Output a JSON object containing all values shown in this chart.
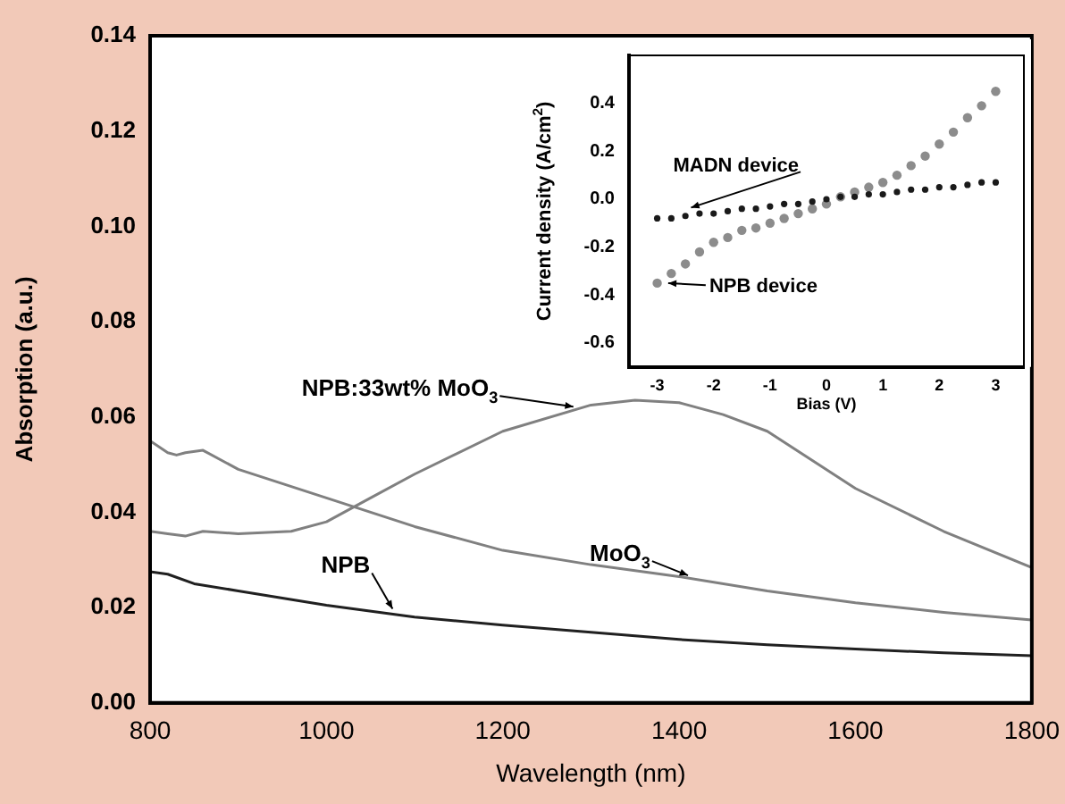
{
  "chart_data": [
    {
      "type": "line",
      "xlabel": "Wavelength (nm)",
      "ylabel": "Absorption (a.u.)",
      "xlim": [
        800,
        1800
      ],
      "ylim": [
        0,
        0.14
      ],
      "xticks": [
        800,
        1000,
        1200,
        1400,
        1600,
        1800
      ],
      "yticks": [
        {
          "value": 0,
          "label": "0.00"
        },
        {
          "value": 0.02,
          "label": "0.02"
        },
        {
          "value": 0.04,
          "label": "0.04"
        },
        {
          "value": 0.06,
          "label": "0.06"
        },
        {
          "value": 0.08,
          "label": "0.08"
        },
        {
          "value": 0.1,
          "label": "0.10"
        },
        {
          "value": 0.12,
          "label": "0.12"
        },
        {
          "value": 0.14,
          "label": "0.14"
        }
      ],
      "marker": "none",
      "line_style": "solid",
      "series": [
        {
          "color": "#808080",
          "x": [
            800,
            820,
            830,
            840,
            860,
            900,
            1000,
            1100,
            1200,
            1300,
            1400,
            1500,
            1600,
            1700,
            1800
          ],
          "values": [
            0.055,
            0.0525,
            0.052,
            0.0525,
            0.053,
            0.049,
            0.043,
            0.037,
            0.032,
            0.029,
            0.0265,
            0.0235,
            0.021,
            0.019,
            0.0174
          ]
        },
        {
          "color": "#808080",
          "x": [
            800,
            820,
            840,
            860,
            900,
            960,
            1000,
            1050,
            1100,
            1200,
            1300,
            1350,
            1400,
            1450,
            1500,
            1550,
            1600,
            1700,
            1800
          ],
          "values": [
            0.036,
            0.0355,
            0.035,
            0.036,
            0.0355,
            0.036,
            0.038,
            0.043,
            0.048,
            0.057,
            0.0625,
            0.0635,
            0.063,
            0.0605,
            0.057,
            0.051,
            0.045,
            0.036,
            0.0284
          ]
        },
        {
          "color": "#202020",
          "x": [
            800,
            820,
            850,
            900,
            1000,
            1100,
            1200,
            1300,
            1400,
            1500,
            1600,
            1700,
            1800
          ],
          "values": [
            0.0275,
            0.027,
            0.025,
            0.0235,
            0.0205,
            0.018,
            0.0163,
            0.0148,
            0.0133,
            0.0122,
            0.0113,
            0.0105,
            0.0099
          ]
        }
      ],
      "annotations": [
        {
          "text": "NPB:33wt% MoO$_{3}$",
          "x": 1280,
          "y": 0.0614
        },
        {
          "text": "MoO$_{3}$",
          "x": 1410,
          "y": 0.026
        },
        {
          "text": "NPB",
          "x": 1075,
          "y": 0.019
        }
      ]
    },
    {
      "type": "scatter",
      "xlabel": "Bias (V)",
      "ylabel": "Current density (A/cm$^{2}$)",
      "xlim": [
        -3.5,
        3.5
      ],
      "ylim": [
        -0.7,
        0.6
      ],
      "xticks": [
        -3,
        -2,
        -1,
        0,
        1,
        2,
        3
      ],
      "yticks": [
        -0.6,
        -0.4,
        -0.2,
        {
          "value": 0,
          "label": "0.0"
        },
        0.2,
        0.4
      ],
      "marker": "circle",
      "series": [
        {
          "color": "#1a1a1a",
          "x": [
            -3,
            -2.75,
            -2.5,
            -2.25,
            -2,
            -1.75,
            -1.5,
            -1.25,
            -1,
            -0.75,
            -0.5,
            -0.25,
            0,
            0.25,
            0.5,
            0.75,
            1,
            1.25,
            1.5,
            1.75,
            2,
            2.25,
            2.5,
            2.75,
            3
          ],
          "values": [
            -0.08,
            -0.08,
            -0.07,
            -0.06,
            -0.06,
            -0.05,
            -0.04,
            -0.04,
            -0.03,
            -0.02,
            -0.02,
            -0.01,
            0,
            0.01,
            0.01,
            0.02,
            0.02,
            0.03,
            0.04,
            0.04,
            0.05,
            0.05,
            0.06,
            0.07,
            0.07
          ]
        },
        {
          "color": "#8c8c8c",
          "x": [
            -3,
            -2.75,
            -2.5,
            -2.25,
            -2,
            -1.75,
            -1.5,
            -1.25,
            -1,
            -0.75,
            -0.5,
            -0.25,
            0,
            0.25,
            0.5,
            0.75,
            1,
            1.25,
            1.5,
            1.75,
            2,
            2.25,
            2.5,
            2.75,
            3
          ],
          "values": [
            -0.35,
            -0.31,
            -0.27,
            -0.22,
            -0.18,
            -0.16,
            -0.13,
            -0.12,
            -0.1,
            -0.08,
            -0.06,
            -0.04,
            -0.02,
            0.01,
            0.03,
            0.05,
            0.07,
            0.1,
            0.14,
            0.18,
            0.23,
            0.28,
            0.34,
            0.39,
            0.45
          ]
        }
      ],
      "annotations": [
        {
          "text": "MADN device",
          "x": -2.4,
          "y": -0.05
        },
        {
          "text": "NPB device",
          "x": -2.9,
          "y": -0.35
        }
      ]
    }
  ]
}
